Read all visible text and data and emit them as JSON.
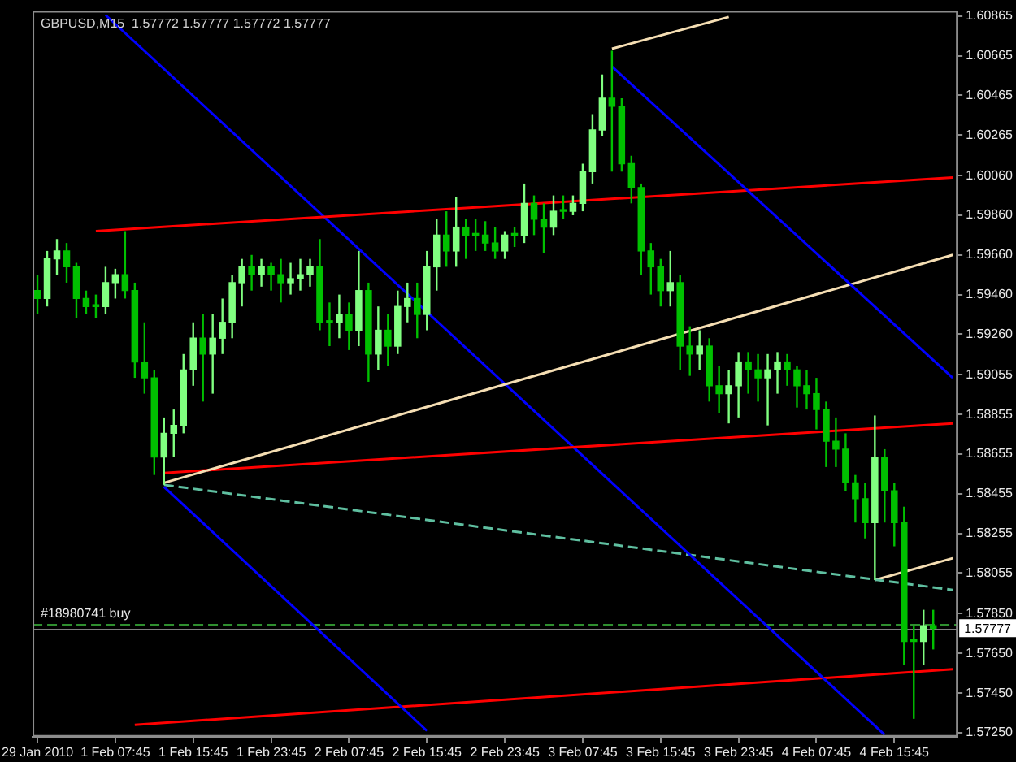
{
  "chart_data": {
    "type": "candlestick",
    "title": "GBPUSD,M15  1.57772 1.57777 1.57772 1.57777",
    "categories": [
      "29 Jan 2010",
      null,
      null,
      null,
      null,
      null,
      null,
      null,
      "1 Feb 07:45",
      null,
      null,
      null,
      null,
      null,
      null,
      null,
      "1 Feb 15:45",
      null,
      null,
      null,
      null,
      null,
      null,
      null,
      "1 Feb 23:45",
      null,
      null,
      null,
      null,
      null,
      null,
      null,
      "2 Feb 07:45",
      null,
      null,
      null,
      null,
      null,
      null,
      null,
      "2 Feb 15:45",
      null,
      null,
      null,
      null,
      null,
      null,
      null,
      "2 Feb 23:45",
      null,
      null,
      null,
      null,
      null,
      null,
      null,
      "3 Feb 07:45",
      null,
      null,
      null,
      null,
      null,
      null,
      null,
      "3 Feb 15:45",
      null,
      null,
      null,
      null,
      null,
      null,
      null,
      "3 Feb 23:45",
      null,
      null,
      null,
      null,
      null,
      null,
      null,
      "4 Feb 07:45",
      null,
      null,
      null,
      null,
      null,
      null,
      null,
      "4 Feb 15:45",
      null,
      null,
      null,
      null,
      null,
      null
    ],
    "ohlc": [
      [
        1.5948,
        1.5956,
        1.5936,
        1.5944
      ],
      [
        1.5944,
        1.5968,
        1.594,
        1.5964
      ],
      [
        1.5964,
        1.5974,
        1.5956,
        1.5968
      ],
      [
        1.5968,
        1.5972,
        1.5952,
        1.596
      ],
      [
        1.596,
        1.5962,
        1.5934,
        1.5944
      ],
      [
        1.5944,
        1.5948,
        1.5936,
        1.594
      ],
      [
        1.594,
        1.5946,
        1.5934,
        1.594
      ],
      [
        1.594,
        1.596,
        1.5936,
        1.5952
      ],
      [
        1.5952,
        1.5959,
        1.5944,
        1.5956
      ],
      [
        1.5956,
        1.5978,
        1.5944,
        1.5948
      ],
      [
        1.5948,
        1.5952,
        1.5904,
        1.5912
      ],
      [
        1.5912,
        1.5932,
        1.5896,
        1.5904
      ],
      [
        1.5904,
        1.5908,
        1.5855,
        1.5864
      ],
      [
        1.5864,
        1.5884,
        1.585,
        1.5876
      ],
      [
        1.5876,
        1.5888,
        1.5864,
        1.588
      ],
      [
        1.588,
        1.5916,
        1.5876,
        1.5908
      ],
      [
        1.5908,
        1.5932,
        1.59,
        1.5924
      ],
      [
        1.5924,
        1.5936,
        1.5892,
        1.5916
      ],
      [
        1.5916,
        1.5936,
        1.5896,
        1.5924
      ],
      [
        1.5924,
        1.5944,
        1.5916,
        1.5932
      ],
      [
        1.5932,
        1.5956,
        1.5924,
        1.5952
      ],
      [
        1.5952,
        1.5964,
        1.594,
        1.596
      ],
      [
        1.596,
        1.5966,
        1.5948,
        1.5956
      ],
      [
        1.5956,
        1.5964,
        1.595,
        1.596
      ],
      [
        1.596,
        1.5962,
        1.5948,
        1.5956
      ],
      [
        1.5956,
        1.5964,
        1.5942,
        1.5952
      ],
      [
        1.5952,
        1.5962,
        1.5946,
        1.5954
      ],
      [
        1.5954,
        1.5964,
        1.5948,
        1.5956
      ],
      [
        1.5956,
        1.5964,
        1.595,
        1.596
      ],
      [
        1.596,
        1.5974,
        1.5928,
        1.5932
      ],
      [
        1.5932,
        1.5942,
        1.592,
        1.5932
      ],
      [
        1.5932,
        1.5946,
        1.5924,
        1.5936
      ],
      [
        1.5936,
        1.5942,
        1.5918,
        1.5928
      ],
      [
        1.5928,
        1.5968,
        1.592,
        1.5948
      ],
      [
        1.5948,
        1.5952,
        1.5902,
        1.5916
      ],
      [
        1.5916,
        1.594,
        1.5908,
        1.5928
      ],
      [
        1.5928,
        1.5936,
        1.591,
        1.592
      ],
      [
        1.592,
        1.5948,
        1.5916,
        1.594
      ],
      [
        1.594,
        1.5952,
        1.5932,
        1.5944
      ],
      [
        1.5944,
        1.5952,
        1.5924,
        1.5936
      ],
      [
        1.5936,
        1.5968,
        1.5928,
        1.596
      ],
      [
        1.596,
        1.5984,
        1.5948,
        1.5976
      ],
      [
        1.5976,
        1.5988,
        1.596,
        1.5968
      ],
      [
        1.5968,
        1.5995,
        1.596,
        1.598
      ],
      [
        1.598,
        1.5984,
        1.5964,
        1.5976
      ],
      [
        1.5976,
        1.5984,
        1.5968,
        1.5976
      ],
      [
        1.5976,
        1.5983,
        1.5968,
        1.5972
      ],
      [
        1.5972,
        1.598,
        1.5964,
        1.5968
      ],
      [
        1.5968,
        1.5978,
        1.5964,
        1.5976
      ],
      [
        1.5976,
        1.598,
        1.597,
        1.5976
      ],
      [
        1.5976,
        1.6002,
        1.5972,
        1.5992
      ],
      [
        1.5992,
        1.5996,
        1.5976,
        1.5984
      ],
      [
        1.5984,
        1.5992,
        1.5967,
        1.598
      ],
      [
        1.598,
        1.5996,
        1.5976,
        1.5988
      ],
      [
        1.5988,
        1.5996,
        1.5984,
        1.5988
      ],
      [
        1.5988,
        1.5996,
        1.5986,
        1.5992
      ],
      [
        1.5992,
        1.6012,
        1.5988,
        1.6008
      ],
      [
        1.6008,
        1.6037,
        1.6002,
        1.6029
      ],
      [
        1.6029,
        1.6057,
        1.6026,
        1.6045
      ],
      [
        1.6045,
        1.6069,
        1.6008,
        1.6041
      ],
      [
        1.6041,
        1.6045,
        1.6008,
        1.6012
      ],
      [
        1.6012,
        1.6016,
        1.5992,
        1.6
      ],
      [
        1.6,
        1.6002,
        1.5956,
        1.5968
      ],
      [
        1.5968,
        1.5972,
        1.5946,
        1.596
      ],
      [
        1.596,
        1.5964,
        1.594,
        1.5948
      ],
      [
        1.5948,
        1.5968,
        1.594,
        1.5952
      ],
      [
        1.5952,
        1.5956,
        1.5908,
        1.592
      ],
      [
        1.592,
        1.593,
        1.5905,
        1.5916
      ],
      [
        1.5916,
        1.5928,
        1.5908,
        1.592
      ],
      [
        1.592,
        1.5924,
        1.5892,
        1.59
      ],
      [
        1.59,
        1.591,
        1.5886,
        1.5896
      ],
      [
        1.5896,
        1.5908,
        1.5881,
        1.59
      ],
      [
        1.59,
        1.5917,
        1.5884,
        1.5912
      ],
      [
        1.5912,
        1.5917,
        1.5896,
        1.5908
      ],
      [
        1.5908,
        1.5916,
        1.5892,
        1.5904
      ],
      [
        1.5904,
        1.5916,
        1.588,
        1.5908
      ],
      [
        1.5908,
        1.5917,
        1.5896,
        1.5912
      ],
      [
        1.5912,
        1.5916,
        1.59,
        1.5908
      ],
      [
        1.5908,
        1.591,
        1.5889,
        1.59
      ],
      [
        1.59,
        1.5908,
        1.5888,
        1.5896
      ],
      [
        1.5896,
        1.5904,
        1.5878,
        1.5888
      ],
      [
        1.5888,
        1.5892,
        1.5859,
        1.5872
      ],
      [
        1.5872,
        1.5884,
        1.5859,
        1.5868
      ],
      [
        1.5868,
        1.5876,
        1.5847,
        1.5851
      ],
      [
        1.5851,
        1.5855,
        1.5831,
        1.5843
      ],
      [
        1.5843,
        1.5851,
        1.5823,
        1.5831
      ],
      [
        1.5831,
        1.5885,
        1.5802,
        1.5864
      ],
      [
        1.5864,
        1.5868,
        1.5831,
        1.5847
      ],
      [
        1.5847,
        1.5851,
        1.5819,
        1.5831
      ],
      [
        1.5831,
        1.5839,
        1.5759,
        1.5771
      ],
      [
        1.5771,
        1.5779,
        1.5732,
        1.5771
      ],
      [
        1.5771,
        1.5787,
        1.5759,
        1.5779
      ],
      [
        1.5779,
        1.5787,
        1.5767,
        1.57777
      ],
      null,
      null
    ],
    "colors": [
      "#00c000",
      "#80ff80",
      "#80ff80",
      "#00c000",
      "#00c000",
      "#00c000",
      "#00c000",
      "#80ff80",
      "#80ff80",
      "#00c000",
      "#00c000",
      "#00c000",
      "#00c000",
      "#80ff80",
      "#80ff80",
      "#80ff80",
      "#80ff80",
      "#00c000",
      "#80ff80",
      "#80ff80",
      "#80ff80",
      "#80ff80",
      "#00c000",
      "#80ff80",
      "#00c000",
      "#00c000",
      "#80ff80",
      "#80ff80",
      "#80ff80",
      "#00c000",
      "#00c000",
      "#80ff80",
      "#00c000",
      "#80ff80",
      "#00c000",
      "#80ff80",
      "#00c000",
      "#80ff80",
      "#80ff80",
      "#00c000",
      "#80ff80",
      "#80ff80",
      "#00c000",
      "#80ff80",
      "#00c000",
      "#00c000",
      "#00c000",
      "#00c000",
      "#80ff80",
      "#00c000",
      "#80ff80",
      "#00c000",
      "#00c000",
      "#80ff80",
      "#00c000",
      "#80ff80",
      "#80ff80",
      "#80ff80",
      "#80ff80",
      "#00c000",
      "#00c000",
      "#00c000",
      "#00c000",
      "#00c000",
      "#00c000",
      "#80ff80",
      "#00c000",
      "#00c000",
      "#80ff80",
      "#00c000",
      "#00c000",
      "#80ff80",
      "#80ff80",
      "#00c000",
      "#00c000",
      "#80ff80",
      "#80ff80",
      "#00c000",
      "#00c000",
      "#00c000",
      "#00c000",
      "#00c000",
      "#00c000",
      "#00c000",
      "#00c000",
      "#00c000",
      "#80ff80",
      "#00c000",
      "#00c000",
      "#00c000",
      "#00c000",
      "#80ff80",
      "#00c000",
      null,
      null
    ],
    "series": [
      {
        "type": "line",
        "color": "#f5deb3",
        "values": [
          null,
          null,
          null,
          null,
          null,
          null,
          null,
          null,
          null,
          null,
          null,
          null,
          null,
          null,
          null,
          null,
          null,
          null,
          null,
          null,
          null,
          null,
          null,
          null,
          null,
          null,
          null,
          null,
          null,
          null,
          null,
          null,
          null,
          null,
          null,
          null,
          null,
          null,
          null,
          null,
          null,
          null,
          null,
          null,
          null,
          null,
          null,
          null,
          null,
          null,
          null,
          null,
          null,
          null,
          null,
          null,
          null,
          null,
          null,
          1.607,
          null,
          null,
          null,
          null,
          null,
          null,
          null,
          null,
          null,
          null,
          null,
          1.6086,
          null,
          null,
          null,
          null,
          null,
          null,
          null,
          null,
          null,
          null,
          null,
          null,
          null,
          null,
          null,
          null,
          null,
          null,
          null,
          null,
          null,
          null,
          null
        ]
      },
      {
        "type": "line",
        "color": "#0000ff",
        "values": [
          null,
          null,
          null,
          null,
          null,
          null,
          null,
          null,
          null,
          null,
          null,
          null,
          null,
          null,
          null,
          null,
          null,
          null,
          null,
          null,
          null,
          null,
          null,
          null,
          null,
          null,
          null,
          null,
          null,
          null,
          null,
          null,
          null,
          null,
          null,
          null,
          null,
          null,
          null,
          null,
          null,
          null,
          null,
          null,
          null,
          null,
          null,
          null,
          null,
          null,
          null,
          null,
          null,
          null,
          null,
          null,
          null,
          null,
          null,
          1.6061,
          null,
          null,
          null,
          null,
          null,
          null,
          null,
          null,
          null,
          null,
          null,
          null,
          null,
          null,
          null,
          null,
          null,
          null,
          null,
          null,
          null,
          null,
          null,
          null,
          null,
          null,
          null,
          null,
          null,
          null,
          null,
          null,
          null,
          null,
          1.5904
        ]
      },
      {
        "type": "line",
        "color": "#ff0000",
        "values": [
          null,
          null,
          null,
          null,
          null,
          null,
          1.5978,
          null,
          null,
          null,
          null,
          null,
          null,
          null,
          null,
          null,
          null,
          null,
          null,
          null,
          null,
          null,
          null,
          null,
          null,
          null,
          null,
          null,
          null,
          null,
          null,
          null,
          null,
          null,
          null,
          null,
          null,
          null,
          null,
          null,
          null,
          null,
          null,
          null,
          null,
          null,
          null,
          null,
          null,
          null,
          null,
          null,
          null,
          null,
          null,
          null,
          null,
          null,
          null,
          null,
          null,
          null,
          null,
          null,
          null,
          null,
          null,
          null,
          null,
          null,
          null,
          null,
          null,
          null,
          null,
          null,
          null,
          null,
          null,
          null,
          null,
          null,
          null,
          null,
          null,
          null,
          null,
          null,
          null,
          null,
          null,
          null,
          null,
          null,
          1.6005
        ]
      },
      {
        "type": "line",
        "color": "#f5deb3",
        "values": [
          null,
          null,
          null,
          null,
          null,
          null,
          null,
          null,
          null,
          null,
          null,
          null,
          null,
          1.5851,
          null,
          null,
          null,
          null,
          null,
          null,
          null,
          null,
          null,
          null,
          null,
          null,
          null,
          null,
          null,
          null,
          null,
          null,
          null,
          null,
          null,
          null,
          null,
          null,
          null,
          null,
          null,
          null,
          null,
          null,
          null,
          null,
          null,
          null,
          null,
          null,
          null,
          null,
          null,
          null,
          null,
          null,
          null,
          null,
          null,
          null,
          null,
          null,
          null,
          null,
          null,
          null,
          null,
          null,
          null,
          null,
          null,
          null,
          null,
          null,
          null,
          null,
          null,
          null,
          null,
          null,
          null,
          null,
          null,
          null,
          null,
          null,
          null,
          null,
          null,
          null,
          null,
          null,
          null,
          null,
          1.5966
        ]
      },
      {
        "type": "line",
        "color": "#ff0000",
        "values": [
          null,
          null,
          null,
          null,
          null,
          null,
          null,
          null,
          null,
          null,
          null,
          null,
          null,
          1.5856,
          null,
          null,
          null,
          null,
          null,
          null,
          null,
          null,
          null,
          null,
          null,
          null,
          null,
          null,
          null,
          null,
          null,
          null,
          null,
          null,
          null,
          null,
          null,
          null,
          null,
          null,
          null,
          null,
          null,
          null,
          null,
          null,
          null,
          null,
          null,
          null,
          null,
          null,
          null,
          null,
          null,
          null,
          null,
          null,
          null,
          null,
          null,
          null,
          null,
          null,
          null,
          null,
          null,
          null,
          null,
          null,
          null,
          null,
          null,
          null,
          null,
          null,
          null,
          null,
          null,
          null,
          null,
          null,
          null,
          null,
          null,
          null,
          null,
          null,
          null,
          null,
          null,
          null,
          null,
          null,
          1.5881
        ]
      },
      {
        "type": "line",
        "color": "#0000ff",
        "values": [
          null,
          null,
          null,
          null,
          null,
          null,
          null,
          1.6087,
          null,
          null,
          null,
          null,
          null,
          null,
          null,
          null,
          null,
          null,
          null,
          null,
          null,
          null,
          null,
          null,
          null,
          null,
          null,
          null,
          null,
          null,
          null,
          null,
          null,
          null,
          null,
          null,
          null,
          null,
          null,
          null,
          null,
          null,
          null,
          null,
          null,
          null,
          null,
          null,
          null,
          null,
          null,
          null,
          null,
          null,
          null,
          null,
          null,
          null,
          null,
          null,
          null,
          null,
          null,
          null,
          null,
          null,
          null,
          null,
          null,
          null,
          null,
          null,
          null,
          null,
          null,
          null,
          null,
          null,
          null,
          null,
          null,
          null,
          null,
          null,
          null,
          null,
          null,
          1.5724,
          null,
          null,
          null,
          null,
          null,
          null,
          null
        ]
      },
      {
        "type": "line",
        "color": "#0000ff",
        "values": [
          null,
          null,
          null,
          null,
          null,
          null,
          null,
          null,
          null,
          null,
          null,
          null,
          null,
          1.5849,
          null,
          null,
          null,
          null,
          null,
          null,
          null,
          null,
          null,
          null,
          null,
          null,
          null,
          null,
          null,
          null,
          null,
          null,
          null,
          null,
          null,
          null,
          null,
          null,
          null,
          null,
          1.5726,
          null,
          null,
          null,
          null,
          null,
          null,
          null,
          null,
          null,
          null,
          null,
          null,
          null,
          null,
          null,
          null,
          null,
          null,
          null,
          null,
          null,
          null,
          null,
          null,
          null,
          null,
          null,
          null,
          null,
          null,
          null,
          null,
          null,
          null,
          null,
          null,
          null,
          null,
          null,
          null,
          null,
          null,
          null,
          null,
          null,
          null,
          null,
          null,
          null,
          null,
          null,
          null,
          null,
          null
        ]
      },
      {
        "type": "line",
        "color": "#5fbfa0",
        "line_style": "dashed",
        "values": [
          null,
          null,
          null,
          null,
          null,
          null,
          null,
          null,
          null,
          null,
          null,
          null,
          null,
          1.585,
          null,
          null,
          null,
          null,
          null,
          null,
          null,
          null,
          null,
          null,
          null,
          null,
          null,
          null,
          null,
          null,
          null,
          null,
          null,
          null,
          null,
          null,
          null,
          null,
          null,
          null,
          null,
          null,
          null,
          null,
          null,
          null,
          null,
          null,
          null,
          null,
          null,
          null,
          null,
          null,
          null,
          null,
          null,
          null,
          null,
          null,
          null,
          null,
          null,
          null,
          null,
          null,
          null,
          null,
          null,
          null,
          null,
          null,
          null,
          null,
          null,
          null,
          null,
          null,
          null,
          null,
          null,
          null,
          null,
          null,
          null,
          null,
          null,
          null,
          null,
          null,
          null,
          null,
          null,
          null,
          1.5797
        ]
      },
      {
        "type": "line",
        "color": "#f5deb3",
        "values": [
          null,
          null,
          null,
          null,
          null,
          null,
          null,
          null,
          null,
          null,
          null,
          null,
          null,
          null,
          null,
          null,
          null,
          null,
          null,
          null,
          null,
          null,
          null,
          null,
          null,
          null,
          null,
          null,
          null,
          null,
          null,
          null,
          null,
          null,
          null,
          null,
          null,
          null,
          null,
          null,
          null,
          null,
          null,
          null,
          null,
          null,
          null,
          null,
          null,
          null,
          null,
          null,
          null,
          null,
          null,
          null,
          null,
          null,
          null,
          null,
          null,
          null,
          null,
          null,
          null,
          null,
          null,
          null,
          null,
          null,
          null,
          null,
          null,
          null,
          null,
          null,
          null,
          null,
          null,
          null,
          null,
          null,
          null,
          null,
          null,
          null,
          1.5802,
          null,
          null,
          null,
          null,
          null,
          null,
          null,
          1.5813
        ]
      },
      {
        "type": "line",
        "color": "#ff0000",
        "values": [
          null,
          null,
          null,
          null,
          null,
          null,
          null,
          null,
          null,
          null,
          1.5729,
          null,
          null,
          null,
          null,
          null,
          null,
          null,
          null,
          null,
          null,
          null,
          null,
          null,
          null,
          null,
          null,
          null,
          null,
          null,
          null,
          null,
          null,
          null,
          null,
          null,
          null,
          null,
          null,
          null,
          null,
          null,
          null,
          null,
          null,
          null,
          null,
          null,
          null,
          null,
          null,
          null,
          null,
          null,
          null,
          null,
          null,
          null,
          null,
          null,
          null,
          null,
          null,
          null,
          null,
          null,
          null,
          null,
          null,
          null,
          null,
          null,
          null,
          null,
          null,
          null,
          null,
          null,
          null,
          null,
          null,
          null,
          null,
          null,
          null,
          null,
          null,
          null,
          null,
          null,
          null,
          null,
          null,
          null,
          1.5757
        ]
      }
    ],
    "ylim": [
      1.5723,
      1.6089
    ],
    "yticks": [
      1.60865,
      1.60665,
      1.60465,
      1.60265,
      {
        "value": 1.6006,
        "label": "1.60060"
      },
      {
        "value": 1.5986,
        "label": "1.59860"
      },
      {
        "value": 1.5966,
        "label": "1.59660"
      },
      {
        "value": 1.5946,
        "label": "1.59460"
      },
      {
        "value": 1.5926,
        "label": "1.59260"
      },
      1.59055,
      1.58855,
      1.58655,
      1.58455,
      1.58255,
      1.58055,
      {
        "value": 1.5785,
        "label": "1.57850"
      },
      {
        "value": 1.5765,
        "label": "1.57650"
      },
      {
        "value": 1.5745,
        "label": "1.57450"
      },
      {
        "value": 1.5725,
        "label": "1.57250"
      }
    ],
    "ref_lines": [
      {
        "axis": "y",
        "value": 1.57777,
        "label": "1.57777",
        "color": "#808080"
      },
      {
        "axis": "y",
        "value": 1.578,
        "label": "#18980741 buy",
        "color": "#2f8f2f",
        "line_style": "dashed"
      }
    ]
  }
}
